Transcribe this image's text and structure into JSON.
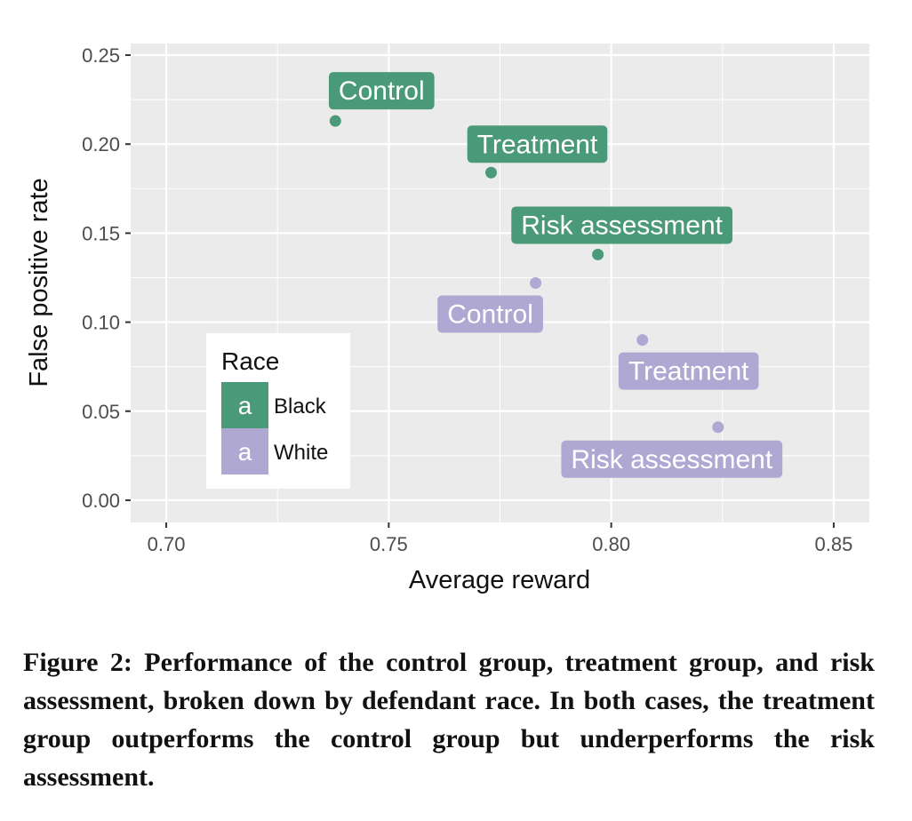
{
  "chart_data": {
    "type": "scatter",
    "xlabel": "Average reward",
    "ylabel": "False positive rate",
    "xlim": [
      0.692,
      0.858
    ],
    "ylim": [
      -0.0125,
      0.2565
    ],
    "x_ticks": [
      0.7,
      0.75,
      0.8,
      0.85
    ],
    "x_tick_labels": [
      "0.70",
      "0.75",
      "0.80",
      "0.85"
    ],
    "y_ticks": [
      0.0,
      0.05,
      0.1,
      0.15,
      0.2,
      0.25
    ],
    "y_tick_labels": [
      "0.00",
      "0.05",
      "0.10",
      "0.15",
      "0.20",
      "0.25"
    ],
    "grid": true,
    "legend": {
      "title": "Race",
      "position": "bottom-left",
      "key_glyph": "a",
      "entries": [
        {
          "label": "Black",
          "color": "#4a9a7a"
        },
        {
          "label": "White",
          "color": "#aea8d3"
        }
      ]
    },
    "series": [
      {
        "name": "Black",
        "color": "#4a9a7a",
        "points": [
          {
            "x": 0.738,
            "y": 0.213,
            "label": "Control"
          },
          {
            "x": 0.773,
            "y": 0.184,
            "label": "Treatment"
          },
          {
            "x": 0.797,
            "y": 0.138,
            "label": "Risk assessment"
          }
        ]
      },
      {
        "name": "White",
        "color": "#aea8d3",
        "points": [
          {
            "x": 0.783,
            "y": 0.122,
            "label": "Control"
          },
          {
            "x": 0.807,
            "y": 0.09,
            "label": "Treatment"
          },
          {
            "x": 0.824,
            "y": 0.041,
            "label": "Risk assessment"
          }
        ]
      }
    ]
  },
  "caption": "Figure 2: Performance of the control group, treatment group, and risk assessment, broken down by defendant race. In both cases, the treatment group outperforms the control group but underperforms the risk assessment."
}
